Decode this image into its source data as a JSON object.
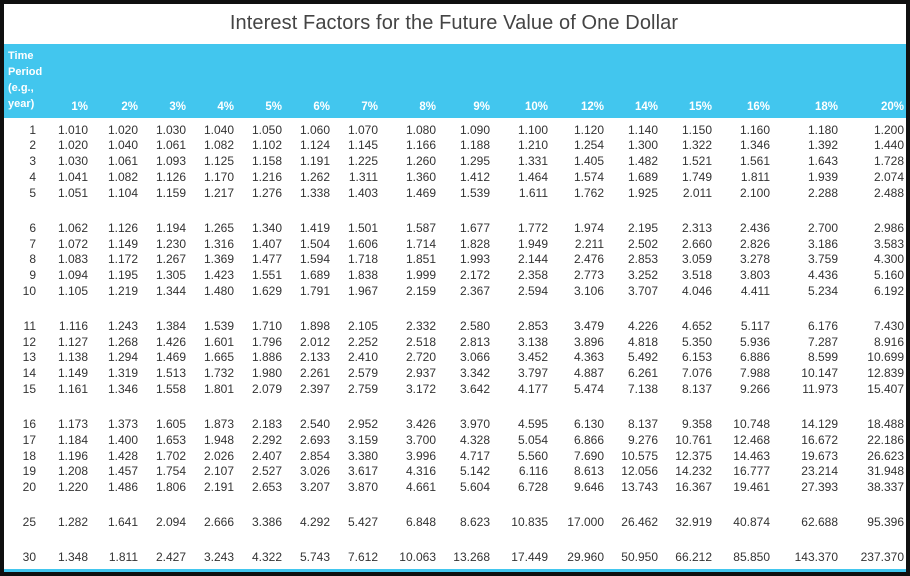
{
  "title": "Interest Factors for the Future Value of One Dollar",
  "colors": {
    "header": "#42c6ee",
    "text": "#333333",
    "title": "#444444"
  },
  "stub_header": [
    "Time",
    "Period",
    "(e.g.,",
    "year)"
  ],
  "rates": [
    "1%",
    "2%",
    "3%",
    "4%",
    "5%",
    "6%",
    "7%",
    "8%",
    "9%",
    "10%",
    "12%",
    "14%",
    "15%",
    "16%",
    "18%",
    "20%"
  ],
  "rows": [
    {
      "period": "1",
      "values": [
        "1.010",
        "1.020",
        "1.030",
        "1.040",
        "1.050",
        "1.060",
        "1.070",
        "1.080",
        "1.090",
        "1.100",
        "1.120",
        "1.140",
        "1.150",
        "1.160",
        "1.180",
        "1.200"
      ]
    },
    {
      "period": "2",
      "values": [
        "1.020",
        "1.040",
        "1.061",
        "1.082",
        "1.102",
        "1.124",
        "1.145",
        "1.166",
        "1.188",
        "1.210",
        "1.254",
        "1.300",
        "1.322",
        "1.346",
        "1.392",
        "1.440"
      ]
    },
    {
      "period": "3",
      "values": [
        "1.030",
        "1.061",
        "1.093",
        "1.125",
        "1.158",
        "1.191",
        "1.225",
        "1.260",
        "1.295",
        "1.331",
        "1.405",
        "1.482",
        "1.521",
        "1.561",
        "1.643",
        "1.728"
      ]
    },
    {
      "period": "4",
      "values": [
        "1.041",
        "1.082",
        "1.126",
        "1.170",
        "1.216",
        "1.262",
        "1.311",
        "1.360",
        "1.412",
        "1.464",
        "1.574",
        "1.689",
        "1.749",
        "1.811",
        "1.939",
        "2.074"
      ]
    },
    {
      "period": "5",
      "values": [
        "1.051",
        "1.104",
        "1.159",
        "1.217",
        "1.276",
        "1.338",
        "1.403",
        "1.469",
        "1.539",
        "1.611",
        "1.762",
        "1.925",
        "2.011",
        "2.100",
        "2.288",
        "2.488"
      ]
    },
    {
      "period": "6",
      "values": [
        "1.062",
        "1.126",
        "1.194",
        "1.265",
        "1.340",
        "1.419",
        "1.501",
        "1.587",
        "1.677",
        "1.772",
        "1.974",
        "2.195",
        "2.313",
        "2.436",
        "2.700",
        "2.986"
      ]
    },
    {
      "period": "7",
      "values": [
        "1.072",
        "1.149",
        "1.230",
        "1.316",
        "1.407",
        "1.504",
        "1.606",
        "1.714",
        "1.828",
        "1.949",
        "2.211",
        "2.502",
        "2.660",
        "2.826",
        "3.186",
        "3.583"
      ]
    },
    {
      "period": "8",
      "values": [
        "1.083",
        "1.172",
        "1.267",
        "1.369",
        "1.477",
        "1.594",
        "1.718",
        "1.851",
        "1.993",
        "2.144",
        "2.476",
        "2.853",
        "3.059",
        "3.278",
        "3.759",
        "4.300"
      ]
    },
    {
      "period": "9",
      "values": [
        "1.094",
        "1.195",
        "1.305",
        "1.423",
        "1.551",
        "1.689",
        "1.838",
        "1.999",
        "2.172",
        "2.358",
        "2.773",
        "3.252",
        "3.518",
        "3.803",
        "4.436",
        "5.160"
      ]
    },
    {
      "period": "10",
      "values": [
        "1.105",
        "1.219",
        "1.344",
        "1.480",
        "1.629",
        "1.791",
        "1.967",
        "2.159",
        "2.367",
        "2.594",
        "3.106",
        "3.707",
        "4.046",
        "4.411",
        "5.234",
        "6.192"
      ]
    },
    {
      "period": "11",
      "values": [
        "1.116",
        "1.243",
        "1.384",
        "1.539",
        "1.710",
        "1.898",
        "2.105",
        "2.332",
        "2.580",
        "2.853",
        "3.479",
        "4.226",
        "4.652",
        "5.117",
        "6.176",
        "7.430"
      ]
    },
    {
      "period": "12",
      "values": [
        "1.127",
        "1.268",
        "1.426",
        "1.601",
        "1.796",
        "2.012",
        "2.252",
        "2.518",
        "2.813",
        "3.138",
        "3.896",
        "4.818",
        "5.350",
        "5.936",
        "7.287",
        "8.916"
      ]
    },
    {
      "period": "13",
      "values": [
        "1.138",
        "1.294",
        "1.469",
        "1.665",
        "1.886",
        "2.133",
        "2.410",
        "2.720",
        "3.066",
        "3.452",
        "4.363",
        "5.492",
        "6.153",
        "6.886",
        "8.599",
        "10.699"
      ]
    },
    {
      "period": "14",
      "values": [
        "1.149",
        "1.319",
        "1.513",
        "1.732",
        "1.980",
        "2.261",
        "2.579",
        "2.937",
        "3.342",
        "3.797",
        "4.887",
        "6.261",
        "7.076",
        "7.988",
        "10.147",
        "12.839"
      ]
    },
    {
      "period": "15",
      "values": [
        "1.161",
        "1.346",
        "1.558",
        "1.801",
        "2.079",
        "2.397",
        "2.759",
        "3.172",
        "3.642",
        "4.177",
        "5.474",
        "7.138",
        "8.137",
        "9.266",
        "11.973",
        "15.407"
      ]
    },
    {
      "period": "16",
      "values": [
        "1.173",
        "1.373",
        "1.605",
        "1.873",
        "2.183",
        "2.540",
        "2.952",
        "3.426",
        "3.970",
        "4.595",
        "6.130",
        "8.137",
        "9.358",
        "10.748",
        "14.129",
        "18.488"
      ]
    },
    {
      "period": "17",
      "values": [
        "1.184",
        "1.400",
        "1.653",
        "1.948",
        "2.292",
        "2.693",
        "3.159",
        "3.700",
        "4.328",
        "5.054",
        "6.866",
        "9.276",
        "10.761",
        "12.468",
        "16.672",
        "22.186"
      ]
    },
    {
      "period": "18",
      "values": [
        "1.196",
        "1.428",
        "1.702",
        "2.026",
        "2.407",
        "2.854",
        "3.380",
        "3.996",
        "4.717",
        "5.560",
        "7.690",
        "10.575",
        "12.375",
        "14.463",
        "19.673",
        "26.623"
      ]
    },
    {
      "period": "19",
      "values": [
        "1.208",
        "1.457",
        "1.754",
        "2.107",
        "2.527",
        "3.026",
        "3.617",
        "4.316",
        "5.142",
        "6.116",
        "8.613",
        "12.056",
        "14.232",
        "16.777",
        "23.214",
        "31.948"
      ]
    },
    {
      "period": "20",
      "values": [
        "1.220",
        "1.486",
        "1.806",
        "2.191",
        "2.653",
        "3.207",
        "3.870",
        "4.661",
        "5.604",
        "6.728",
        "9.646",
        "13.743",
        "16.367",
        "19.461",
        "27.393",
        "38.337"
      ]
    },
    {
      "period": "25",
      "values": [
        "1.282",
        "1.641",
        "2.094",
        "2.666",
        "3.386",
        "4.292",
        "5.427",
        "6.848",
        "8.623",
        "10.835",
        "17.000",
        "26.462",
        "32.919",
        "40.874",
        "62.688",
        "95.396"
      ]
    },
    {
      "period": "30",
      "values": [
        "1.348",
        "1.811",
        "2.427",
        "3.243",
        "4.322",
        "5.743",
        "7.612",
        "10.063",
        "13.268",
        "17.449",
        "29.960",
        "50.950",
        "66.212",
        "85.850",
        "143.370",
        "237.370"
      ]
    }
  ]
}
